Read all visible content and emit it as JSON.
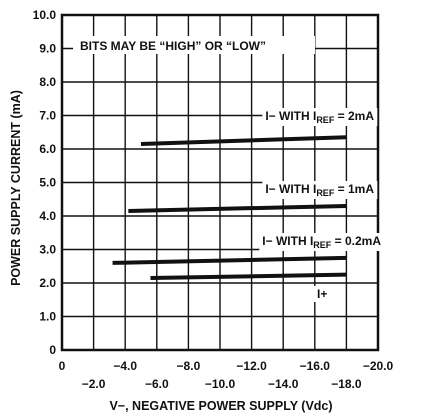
{
  "chart_data": {
    "type": "line",
    "xlabel": "V−, NEGATIVE POWER SUPPLY (Vdc)",
    "ylabel": "POWER SUPPLY CURRENT (mA)",
    "xlim": [
      0,
      -20
    ],
    "ylim": [
      0,
      10
    ],
    "grid": true,
    "x_ticks_upper": [
      "0",
      "−4.0",
      "−8.0",
      "−12.0",
      "−16.0",
      "−20.0"
    ],
    "x_ticks_lower": [
      "−2.0",
      "−6.0",
      "−10.0",
      "−14.0",
      "−18.0"
    ],
    "y_ticks": [
      "0",
      "1.0",
      "2.0",
      "3.0",
      "4.0",
      "5.0",
      "6.0",
      "7.0",
      "8.0",
      "9.0",
      "10.0"
    ],
    "note": "BITS MAY BE “HIGH” OR “LOW”",
    "series": [
      {
        "name_prefix": "I− WITH I",
        "name_sub": "REF",
        "name_suffix": " = 2mA",
        "x": [
          -5.0,
          -18.0
        ],
        "y": [
          6.15,
          6.35
        ]
      },
      {
        "name_prefix": "I− WITH I",
        "name_sub": "REF",
        "name_suffix": " = 1mA",
        "x": [
          -4.2,
          -18.0
        ],
        "y": [
          4.15,
          4.3
        ]
      },
      {
        "name_prefix": "I− WITH I",
        "name_sub": "REF",
        "name_suffix": " = 0.2mA",
        "x": [
          -3.2,
          -18.0
        ],
        "y": [
          2.6,
          2.75
        ]
      },
      {
        "name_prefix": "I+",
        "name_sub": "",
        "name_suffix": "",
        "x": [
          -5.6,
          -18.0
        ],
        "y": [
          2.15,
          2.25
        ]
      }
    ]
  }
}
